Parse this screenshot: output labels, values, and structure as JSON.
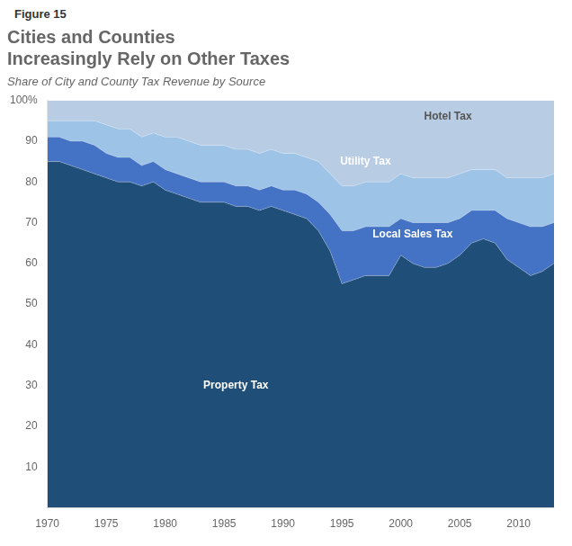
{
  "chart_data": {
    "type": "area",
    "figure_label": "Figure 15",
    "title": "Cities and Counties\nIncreasingly Rely on Other Taxes",
    "subtitle": "Share of City and County Tax Revenue by Source",
    "stacked": true,
    "grid": false,
    "x": [
      1970,
      1971,
      1972,
      1973,
      1974,
      1975,
      1976,
      1977,
      1978,
      1979,
      1980,
      1981,
      1982,
      1983,
      1984,
      1985,
      1986,
      1987,
      1988,
      1989,
      1990,
      1991,
      1992,
      1993,
      1994,
      1995,
      1996,
      1997,
      1998,
      1999,
      2000,
      2001,
      2002,
      2003,
      2004,
      2005,
      2006,
      2007,
      2008,
      2009,
      2010,
      2011,
      2012,
      2013
    ],
    "series": [
      {
        "name": "Property Tax",
        "color": "#1f4e79",
        "values": [
          85,
          85,
          84,
          83,
          82,
          81,
          80,
          80,
          79,
          80,
          78,
          77,
          76,
          75,
          75,
          75,
          74,
          74,
          73,
          74,
          73,
          72,
          71,
          68,
          63,
          55,
          56,
          57,
          57,
          57,
          62,
          60,
          59,
          59,
          60,
          62,
          65,
          66,
          65,
          61,
          59,
          57,
          58,
          60
        ]
      },
      {
        "name": "Local Sales Tax",
        "color": "#4472c4",
        "values": [
          6,
          6,
          6,
          7,
          7,
          6,
          6,
          6,
          5,
          5,
          5,
          5,
          5,
          5,
          5,
          5,
          5,
          5,
          5,
          5,
          5,
          6,
          6,
          7,
          9,
          13,
          12,
          12,
          12,
          12,
          9,
          10,
          11,
          11,
          10,
          9,
          8,
          7,
          8,
          10,
          11,
          12,
          11,
          10
        ]
      },
      {
        "name": "Utility Tax",
        "color": "#9dc3e6",
        "values": [
          4,
          4,
          5,
          5,
          6,
          7,
          7,
          7,
          7,
          7,
          8,
          9,
          9,
          9,
          9,
          9,
          9,
          9,
          9,
          9,
          9,
          9,
          9,
          10,
          10,
          11,
          11,
          11,
          11,
          11,
          11,
          11,
          11,
          11,
          11,
          11,
          10,
          10,
          10,
          10,
          11,
          12,
          12,
          12
        ]
      },
      {
        "name": "Hotel Tax",
        "color": "#b8cce4",
        "values": [
          5,
          5,
          5,
          5,
          5,
          6,
          7,
          7,
          9,
          8,
          9,
          9,
          10,
          11,
          11,
          11,
          12,
          12,
          13,
          12,
          13,
          13,
          14,
          15,
          18,
          21,
          21,
          20,
          20,
          20,
          18,
          19,
          19,
          19,
          19,
          18,
          17,
          17,
          17,
          19,
          19,
          19,
          19,
          18
        ]
      }
    ],
    "xlim": [
      1970,
      2013
    ],
    "xticks": [
      1970,
      1975,
      1980,
      1985,
      1990,
      1995,
      2000,
      2005,
      2010
    ],
    "ylim": [
      0,
      100
    ],
    "yticks": [
      10,
      20,
      30,
      40,
      50,
      60,
      70,
      80,
      90,
      {
        "value": 100,
        "label": "100%"
      }
    ],
    "annotations": [
      {
        "text": "Property Tax",
        "x": 1986,
        "y": 30,
        "color": "#ffffff"
      },
      {
        "text": "Local Sales Tax",
        "x": 2001,
        "y": 67,
        "color": "#ffffff"
      },
      {
        "text": "Utility Tax",
        "x": 1997,
        "y": 85,
        "color": "#ffffff"
      },
      {
        "text": "Hotel Tax",
        "x": 2004,
        "y": 96,
        "color": "#555555"
      }
    ]
  }
}
